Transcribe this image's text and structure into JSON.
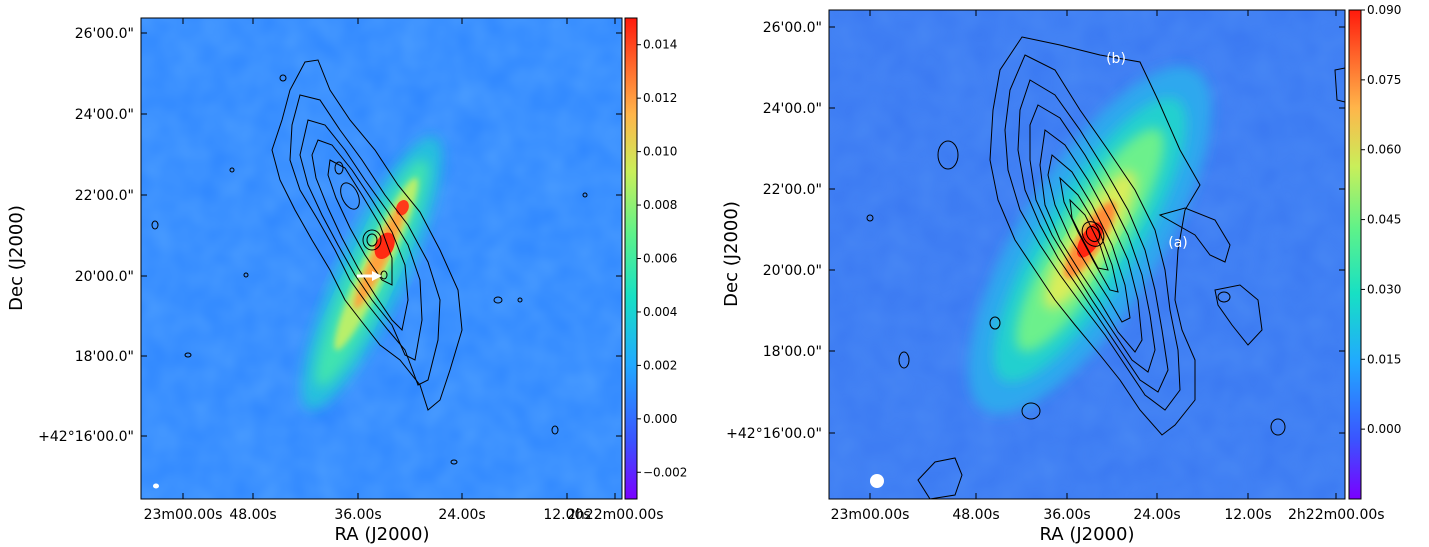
{
  "chart_data": [
    {
      "type": "heatmap",
      "xlabel": "RA (J2000)",
      "ylabel": "Dec (J2000)",
      "x_ticks": [
        "23m00.00s",
        "48.00s",
        "36.00s",
        "24.00s",
        "12.00s",
        "2h22m00.00s"
      ],
      "y_ticks": [
        "26'00.0\"",
        "24'00.0\"",
        "22'00.0\"",
        "20'00.0\"",
        "18'00.0\"",
        "+42°16'00.0\""
      ],
      "colorbar": {
        "ticks": [
          "0.014",
          "0.012",
          "0.010",
          "0.008",
          "0.006",
          "0.004",
          "0.002",
          "0.000",
          "−0.002"
        ],
        "values": [
          0.014,
          0.012,
          0.01,
          0.008,
          0.006,
          0.004,
          0.002,
          0.0,
          -0.002
        ],
        "range": [
          -0.003,
          0.015
        ]
      },
      "annotations": [],
      "grid": false
    },
    {
      "type": "heatmap",
      "xlabel": "RA (J2000)",
      "ylabel": "Dec (J2000)",
      "x_ticks": [
        "23m00.00s",
        "48.00s",
        "36.00s",
        "24.00s",
        "12.00s",
        "2h22m00.00s"
      ],
      "y_ticks": [
        "26'00.0\"",
        "24'00.0\"",
        "22'00.0\"",
        "20'00.0\"",
        "18'00.0\"",
        "+42°16'00.0\""
      ],
      "colorbar": {
        "ticks": [
          "0.090",
          "0.075",
          "0.060",
          "0.045",
          "0.030",
          "0.015",
          "0.000"
        ],
        "values": [
          0.09,
          0.075,
          0.06,
          0.045,
          0.03,
          0.015,
          0.0
        ],
        "range": [
          -0.015,
          0.09
        ]
      },
      "annotations": [
        "(a)",
        "(b)"
      ],
      "grid": false
    }
  ]
}
